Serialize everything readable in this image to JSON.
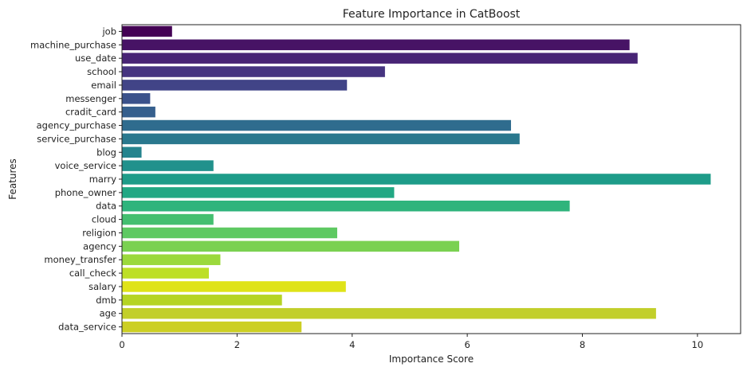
{
  "chart_data": {
    "type": "bar",
    "orientation": "horizontal",
    "title": "Feature Importance in CatBoost",
    "xlabel": "Importance Score",
    "ylabel": "Features",
    "xlim": [
      0,
      10.75
    ],
    "xticks": [
      0,
      2,
      4,
      6,
      8,
      10
    ],
    "grid": false,
    "legend": "none",
    "categories": [
      "job",
      "machine_purchase",
      "use_date",
      "school",
      "email",
      "messenger",
      "cradit_card",
      "agency_purchase",
      "service_purchase",
      "blog",
      "voice_service",
      "marry",
      "phone_owner",
      "data",
      "cloud",
      "religion",
      "agency",
      "money_transfer",
      "call_check",
      "salary",
      "dmb",
      "age",
      "data_service"
    ],
    "values": [
      0.87,
      8.82,
      8.96,
      4.57,
      3.91,
      0.49,
      0.58,
      6.76,
      6.91,
      0.34,
      1.59,
      10.23,
      4.73,
      7.78,
      1.59,
      3.74,
      5.86,
      1.71,
      1.51,
      3.89,
      2.78,
      9.28,
      3.12
    ],
    "colors": [
      "#440154",
      "#471365",
      "#482475",
      "#463480",
      "#414487",
      "#3b528b",
      "#355f8d",
      "#2f6c8e",
      "#2a788e",
      "#25848e",
      "#21918c",
      "#1e9c89",
      "#22a884",
      "#2fb47c",
      "#44bf70",
      "#5ec962",
      "#7ad151",
      "#9bd93c",
      "#bddf26",
      "#dfe318",
      "#b5d424",
      "#c2cf2a",
      "#cccf23"
    ]
  }
}
